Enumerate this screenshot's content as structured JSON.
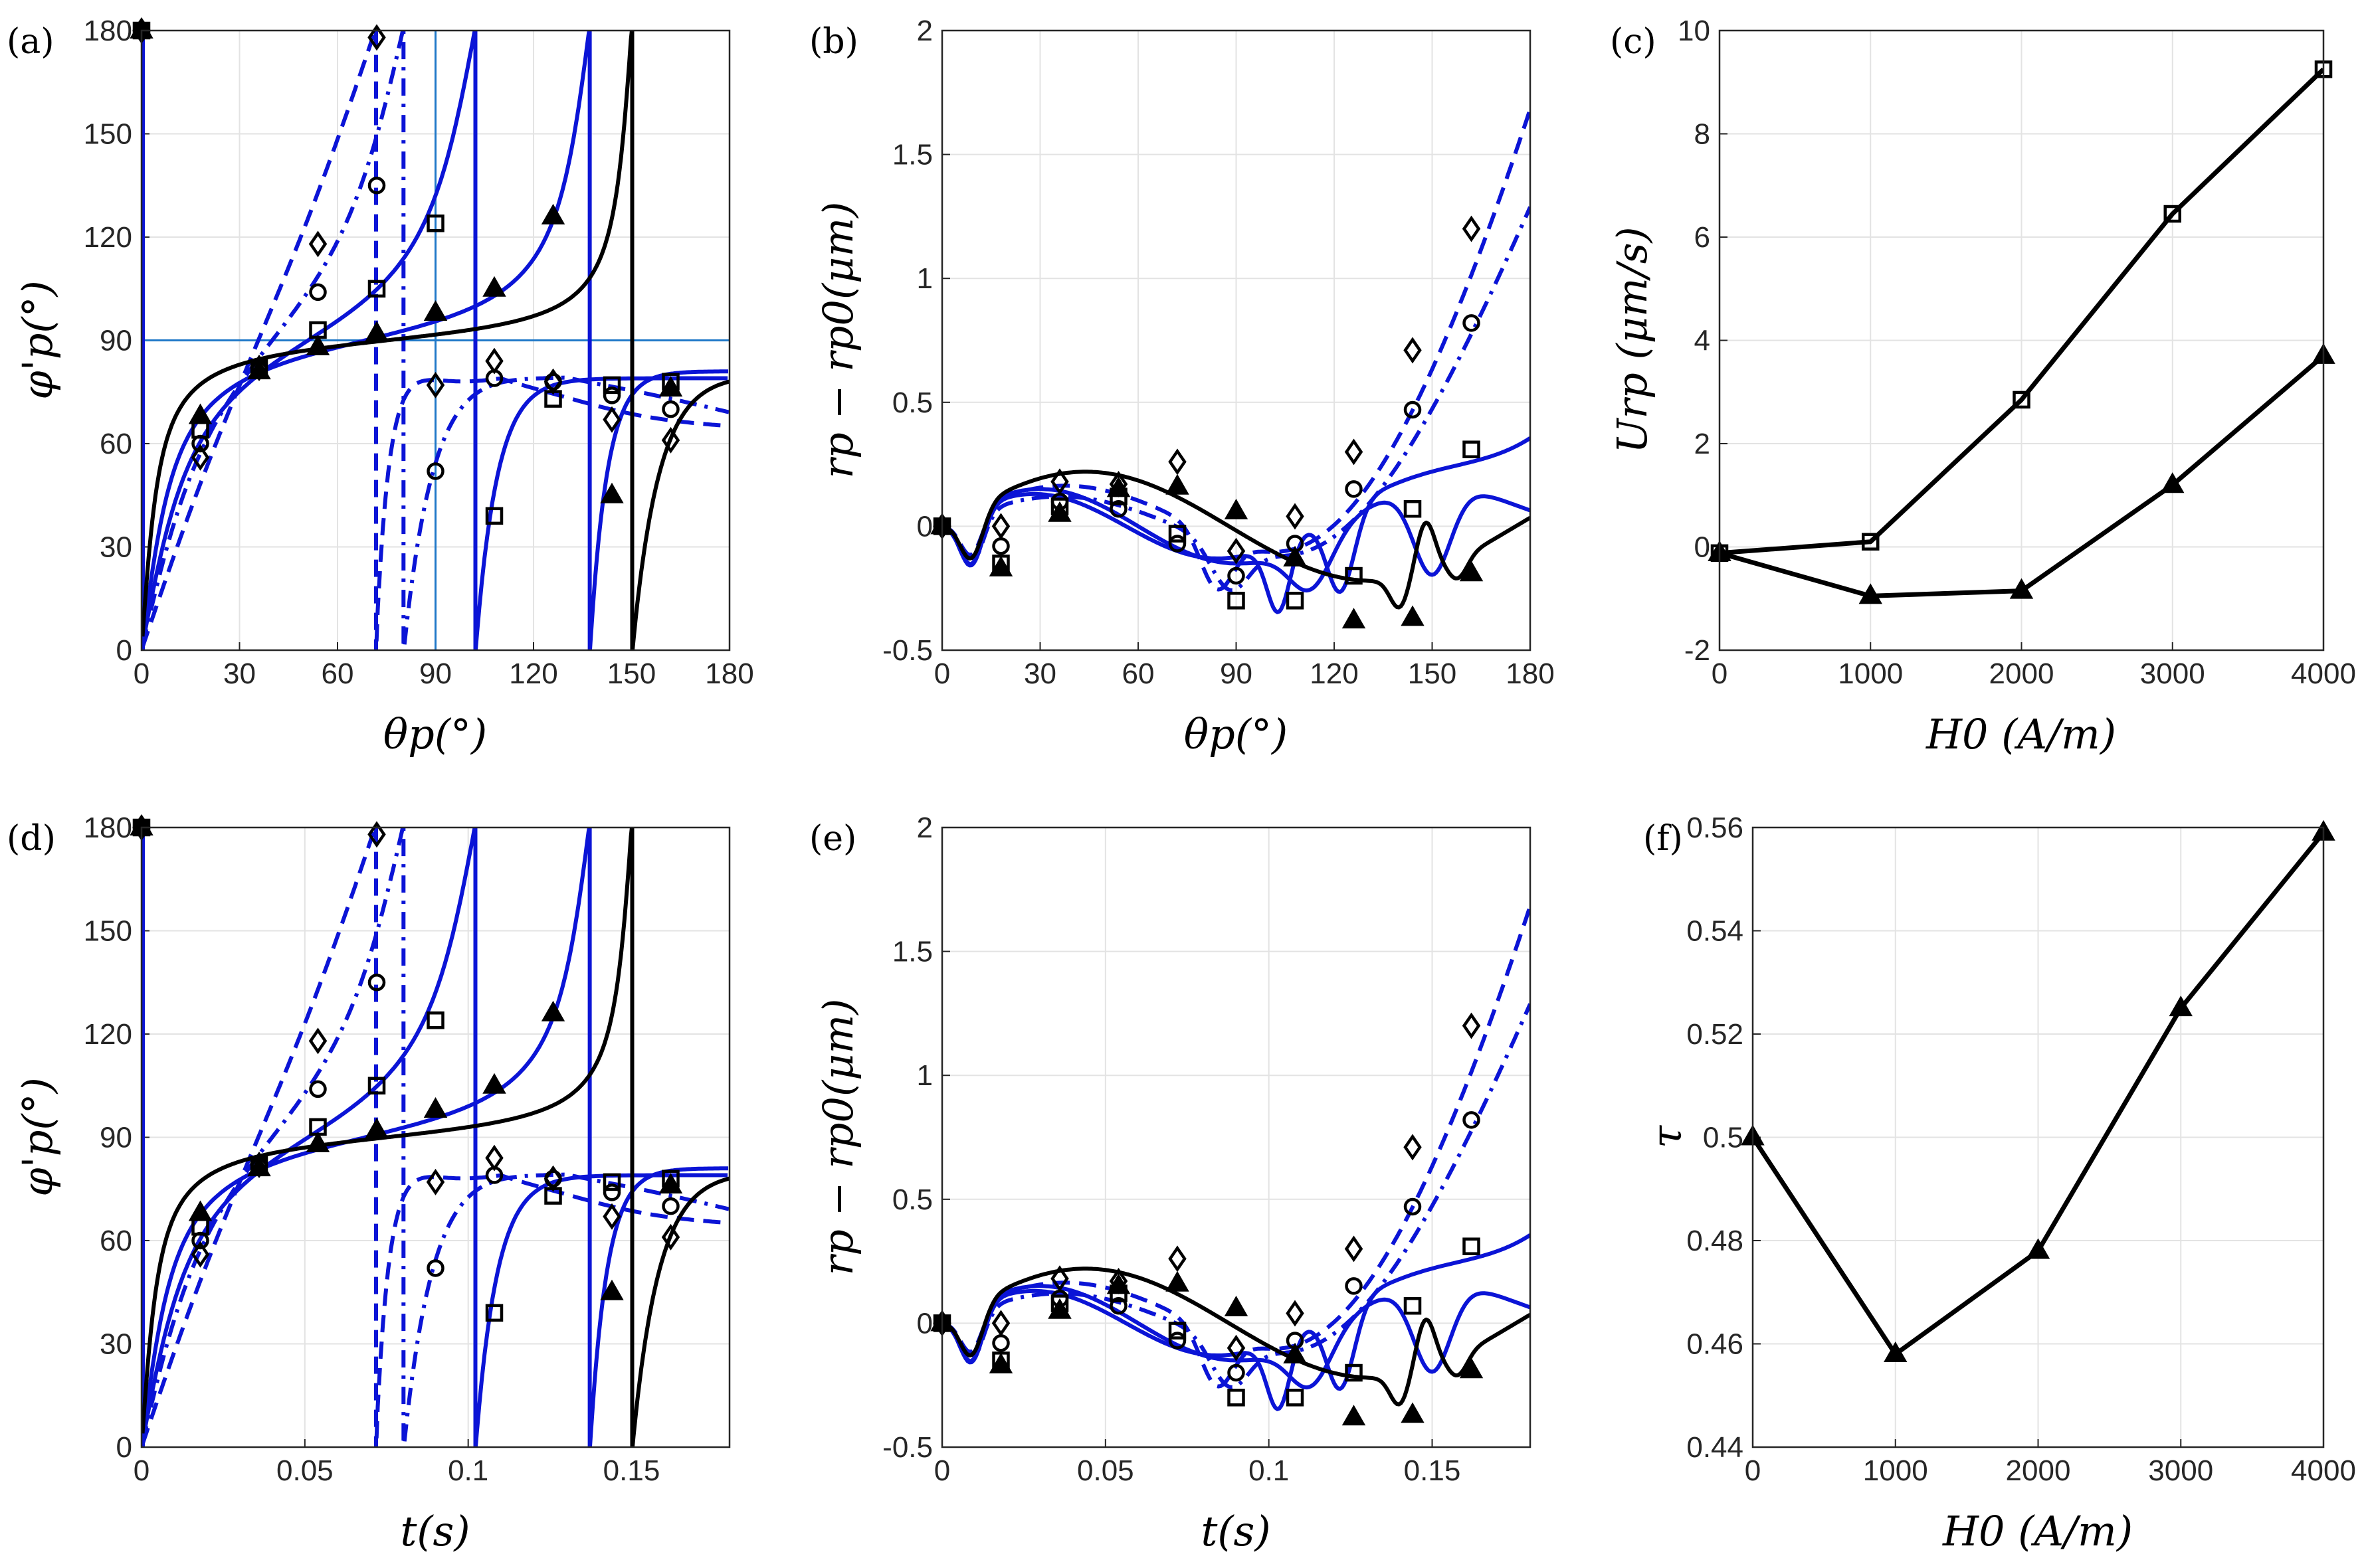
{
  "colors": {
    "blue": "#0b14d6",
    "black": "#000000",
    "refline": "#1f78c8",
    "grid": "#e3e3e3",
    "axis": "#262626"
  },
  "series_styles": {
    "diamond": {
      "color": "#0b14d6",
      "dash": "dashed",
      "marker": "diamond"
    },
    "circle": {
      "color": "#0b14d6",
      "dash": "dash-dot",
      "marker": "circle"
    },
    "square": {
      "color": "#0b14d6",
      "dash": "solid",
      "marker": "square"
    },
    "triangle_blue": {
      "color": "#0b14d6",
      "dash": "solid",
      "marker": "triangle"
    },
    "triangle_black": {
      "color": "#000000",
      "dash": "solid",
      "marker": "triangle"
    }
  },
  "chart_data": [
    {
      "id": "a",
      "panel_label": "(a)",
      "type": "line",
      "xlabel": "θp(°)",
      "ylabel": "φ'p(°)",
      "xlim": [
        0,
        180
      ],
      "ylim": [
        0,
        180
      ],
      "xticks": [
        "0",
        "30",
        "60",
        "90",
        "120",
        "150",
        "180"
      ],
      "yticks": [
        "0",
        "30",
        "60",
        "90",
        "120",
        "150",
        "180"
      ],
      "reference_lines": {
        "x": 90,
        "y": 90
      },
      "markers": {
        "diamond": [
          [
            0,
            180
          ],
          [
            18,
            56
          ],
          [
            36,
            82
          ],
          [
            54,
            118
          ],
          [
            72,
            178
          ],
          [
            90,
            77
          ],
          [
            108,
            84
          ],
          [
            126,
            78
          ],
          [
            144,
            67
          ],
          [
            162,
            61
          ]
        ],
        "circle": [
          [
            0,
            180
          ],
          [
            18,
            60
          ],
          [
            36,
            82
          ],
          [
            54,
            104
          ],
          [
            72,
            135
          ],
          [
            90,
            52
          ],
          [
            108,
            79
          ],
          [
            126,
            78
          ],
          [
            144,
            74
          ],
          [
            162,
            70
          ]
        ],
        "square": [
          [
            0,
            180
          ],
          [
            18,
            64
          ],
          [
            36,
            82
          ],
          [
            54,
            93
          ],
          [
            72,
            105
          ],
          [
            90,
            124
          ],
          [
            108,
            39
          ],
          [
            126,
            73
          ],
          [
            144,
            77
          ],
          [
            162,
            78
          ]
        ],
        "triangle_blue": [
          [
            0,
            180
          ],
          [
            18,
            68
          ],
          [
            36,
            81
          ],
          [
            54,
            88
          ],
          [
            72,
            92
          ],
          [
            90,
            98
          ],
          [
            108,
            105
          ],
          [
            126,
            126
          ],
          [
            144,
            45
          ],
          [
            162,
            76
          ]
        ]
      }
    },
    {
      "id": "b",
      "panel_label": "(b)",
      "type": "line",
      "xlabel": "θp(°)",
      "ylabel": "rp − rp0(μm)",
      "xlim": [
        0,
        180
      ],
      "ylim": [
        -0.5,
        2
      ],
      "xticks": [
        "0",
        "30",
        "60",
        "90",
        "120",
        "150",
        "180"
      ],
      "yticks": [
        "-0.5",
        "0",
        "0.5",
        "1",
        "1.5",
        "2"
      ],
      "markers": {
        "diamond": [
          [
            0,
            0
          ],
          [
            18,
            0
          ],
          [
            36,
            0.18
          ],
          [
            54,
            0.17
          ],
          [
            72,
            0.26
          ],
          [
            90,
            -0.1
          ],
          [
            108,
            0.04
          ],
          [
            126,
            0.3
          ],
          [
            144,
            0.71
          ],
          [
            162,
            1.2
          ]
        ],
        "circle": [
          [
            0,
            0
          ],
          [
            18,
            -0.08
          ],
          [
            36,
            0.1
          ],
          [
            54,
            0.07
          ],
          [
            72,
            -0.07
          ],
          [
            90,
            -0.2
          ],
          [
            108,
            -0.07
          ],
          [
            126,
            0.15
          ],
          [
            144,
            0.47
          ],
          [
            162,
            0.82
          ]
        ],
        "square": [
          [
            0,
            0
          ],
          [
            18,
            -0.15
          ],
          [
            36,
            0.08
          ],
          [
            54,
            0.12
          ],
          [
            72,
            -0.03
          ],
          [
            90,
            -0.3
          ],
          [
            108,
            -0.3
          ],
          [
            126,
            -0.2
          ],
          [
            144,
            0.07
          ],
          [
            162,
            0.31
          ]
        ],
        "triangle": [
          [
            0,
            0
          ],
          [
            18,
            -0.17
          ],
          [
            36,
            0.05
          ],
          [
            54,
            0.15
          ],
          [
            72,
            0.16
          ],
          [
            90,
            0.06
          ],
          [
            108,
            -0.13
          ],
          [
            126,
            -0.38
          ],
          [
            144,
            -0.37
          ],
          [
            162,
            -0.19
          ]
        ]
      }
    },
    {
      "id": "c",
      "panel_label": "(c)",
      "type": "line",
      "xlabel": "H0 (A/m)",
      "ylabel": "Urp (μm/s)",
      "xlim": [
        0,
        4000
      ],
      "ylim": [
        -2,
        10
      ],
      "xticks": [
        "0",
        "1000",
        "2000",
        "3000",
        "4000"
      ],
      "yticks": [
        "-2",
        "0",
        "2",
        "4",
        "6",
        "8",
        "10"
      ],
      "categories": [
        0,
        1000,
        2000,
        3000,
        4000
      ],
      "series": [
        {
          "marker": "square",
          "values": [
            -0.12,
            0.1,
            2.85,
            6.45,
            9.25
          ]
        },
        {
          "marker": "triangle",
          "values": [
            -0.12,
            -0.95,
            -0.85,
            1.2,
            3.7
          ]
        }
      ]
    },
    {
      "id": "d",
      "panel_label": "(d)",
      "type": "line",
      "xlabel": "t(s)",
      "ylabel": "φ'p(°)",
      "xlim": [
        0,
        0.18
      ],
      "ylim": [
        0,
        180
      ],
      "xticks": [
        "0",
        "0.05",
        "0.1",
        "0.15"
      ],
      "yticks": [
        "0",
        "30",
        "60",
        "90",
        "120",
        "150",
        "180"
      ],
      "markers": {
        "diamond": [
          [
            0,
            180
          ],
          [
            0.018,
            56
          ],
          [
            0.036,
            82
          ],
          [
            0.054,
            118
          ],
          [
            0.072,
            178
          ],
          [
            0.09,
            77
          ],
          [
            0.108,
            84
          ],
          [
            0.126,
            78
          ],
          [
            0.144,
            67
          ],
          [
            0.162,
            61
          ]
        ],
        "circle": [
          [
            0,
            180
          ],
          [
            0.018,
            60
          ],
          [
            0.036,
            82
          ],
          [
            0.054,
            104
          ],
          [
            0.072,
            135
          ],
          [
            0.09,
            52
          ],
          [
            0.108,
            79
          ],
          [
            0.126,
            78
          ],
          [
            0.144,
            74
          ],
          [
            0.162,
            70
          ]
        ],
        "square": [
          [
            0,
            180
          ],
          [
            0.018,
            64
          ],
          [
            0.036,
            82
          ],
          [
            0.054,
            93
          ],
          [
            0.072,
            105
          ],
          [
            0.09,
            124
          ],
          [
            0.108,
            39
          ],
          [
            0.126,
            73
          ],
          [
            0.144,
            77
          ],
          [
            0.162,
            78
          ]
        ],
        "triangle_blue": [
          [
            0,
            180
          ],
          [
            0.018,
            68
          ],
          [
            0.036,
            81
          ],
          [
            0.054,
            88
          ],
          [
            0.072,
            92
          ],
          [
            0.09,
            98
          ],
          [
            0.108,
            105
          ],
          [
            0.126,
            126
          ],
          [
            0.144,
            45
          ],
          [
            0.162,
            76
          ]
        ]
      }
    },
    {
      "id": "e",
      "panel_label": "(e)",
      "type": "line",
      "xlabel": "t(s)",
      "ylabel": "rp − rp0(μm)",
      "xlim": [
        0,
        0.18
      ],
      "ylim": [
        -0.5,
        2
      ],
      "xticks": [
        "0",
        "0.05",
        "0.1",
        "0.15"
      ],
      "yticks": [
        "-0.5",
        "0",
        "0.5",
        "1",
        "1.5",
        "2"
      ],
      "markers": {
        "diamond": [
          [
            0,
            0
          ],
          [
            0.018,
            0
          ],
          [
            0.036,
            0.18
          ],
          [
            0.054,
            0.17
          ],
          [
            0.072,
            0.26
          ],
          [
            0.09,
            -0.1
          ],
          [
            0.108,
            0.04
          ],
          [
            0.126,
            0.3
          ],
          [
            0.144,
            0.71
          ],
          [
            0.162,
            1.2
          ]
        ],
        "circle": [
          [
            0,
            0
          ],
          [
            0.018,
            -0.08
          ],
          [
            0.036,
            0.1
          ],
          [
            0.054,
            0.07
          ],
          [
            0.072,
            -0.07
          ],
          [
            0.09,
            -0.2
          ],
          [
            0.108,
            -0.07
          ],
          [
            0.126,
            0.15
          ],
          [
            0.144,
            0.47
          ],
          [
            0.162,
            0.82
          ]
        ],
        "square": [
          [
            0,
            0
          ],
          [
            0.018,
            -0.15
          ],
          [
            0.036,
            0.08
          ],
          [
            0.054,
            0.12
          ],
          [
            0.072,
            -0.03
          ],
          [
            0.09,
            -0.3
          ],
          [
            0.108,
            -0.3
          ],
          [
            0.126,
            -0.2
          ],
          [
            0.144,
            0.07
          ],
          [
            0.162,
            0.31
          ]
        ],
        "triangle": [
          [
            0,
            0
          ],
          [
            0.018,
            -0.17
          ],
          [
            0.036,
            0.05
          ],
          [
            0.054,
            0.15
          ],
          [
            0.072,
            0.16
          ],
          [
            0.09,
            0.06
          ],
          [
            0.108,
            -0.13
          ],
          [
            0.126,
            -0.38
          ],
          [
            0.144,
            -0.37
          ],
          [
            0.162,
            -0.19
          ]
        ]
      }
    },
    {
      "id": "f",
      "panel_label": "(f)",
      "type": "line",
      "xlabel": "H0 (A/m)",
      "ylabel": "τ",
      "xlim": [
        0,
        4000
      ],
      "ylim": [
        0.44,
        0.56
      ],
      "xticks": [
        "0",
        "1000",
        "2000",
        "3000",
        "4000"
      ],
      "yticks": [
        "0.44",
        "0.46",
        "0.48",
        "0.5",
        "0.52",
        "0.54",
        "0.56"
      ],
      "categories": [
        0,
        1000,
        2000,
        3000,
        4000
      ],
      "series": [
        {
          "marker": "triangle",
          "values": [
            0.5,
            0.458,
            0.478,
            0.525,
            0.559
          ]
        }
      ]
    }
  ]
}
